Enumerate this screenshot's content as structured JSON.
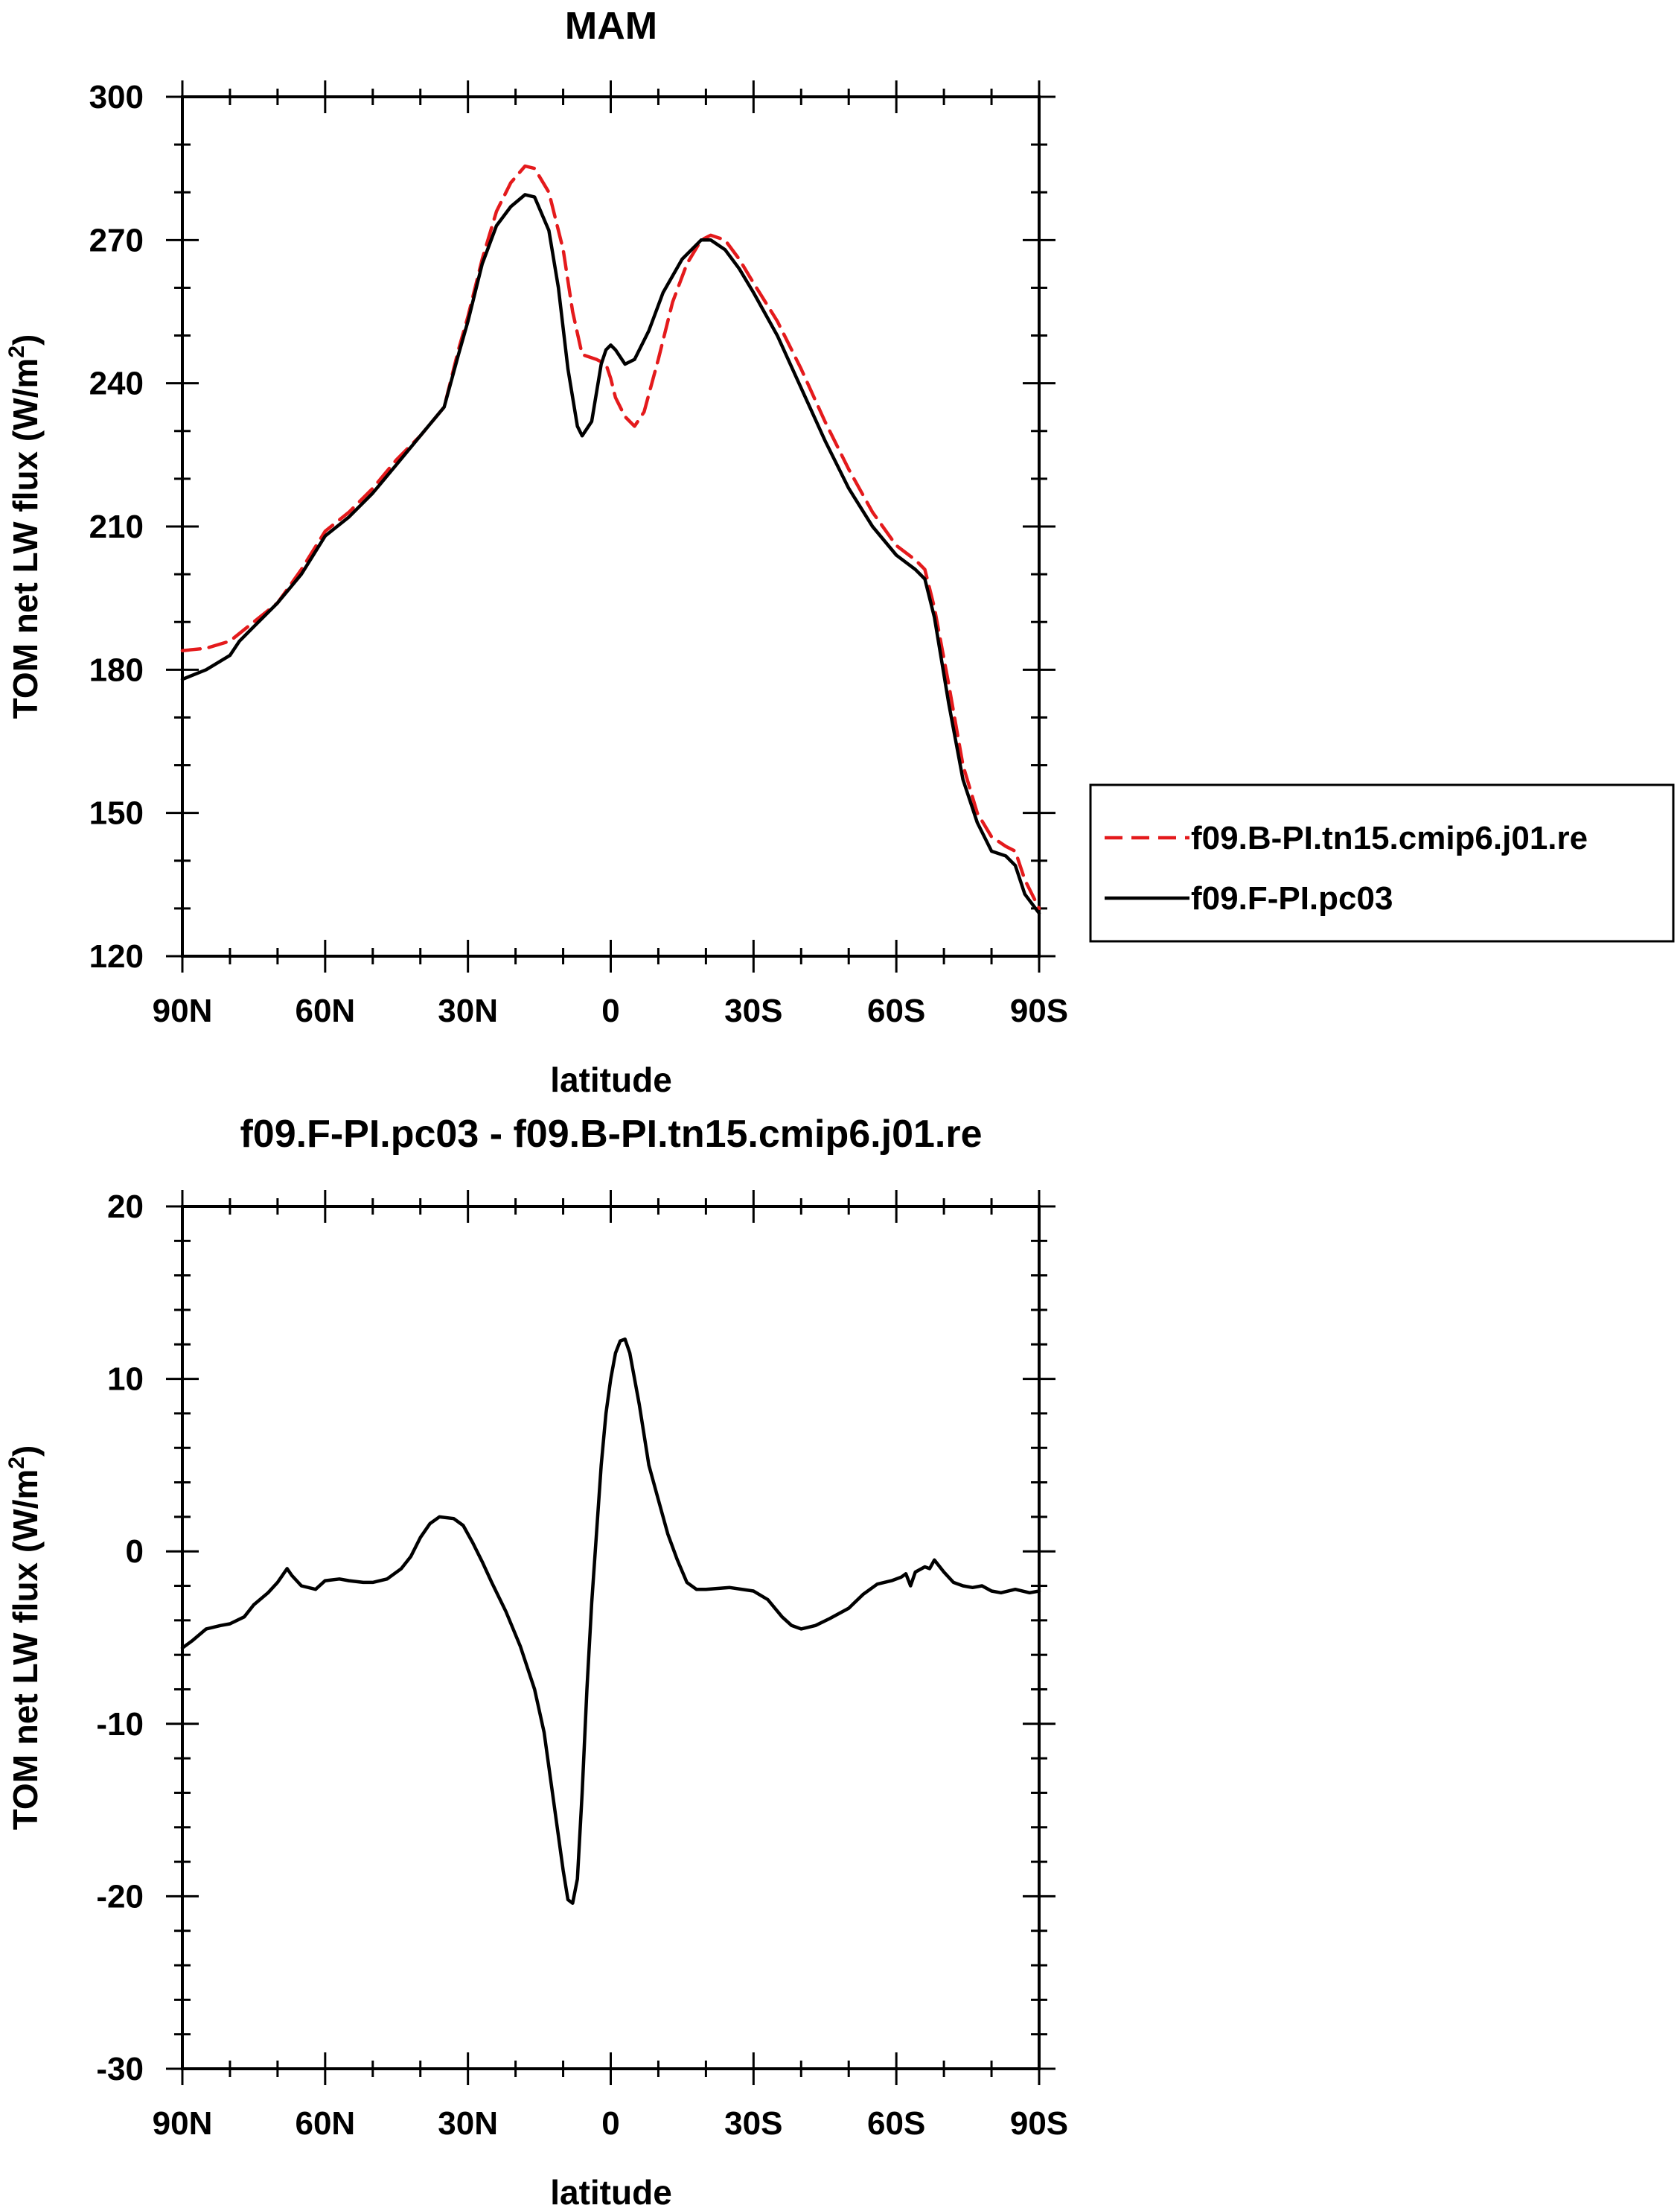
{
  "chart_data": [
    {
      "type": "line",
      "title": "MAM",
      "xlabel": "latitude",
      "ylabel_main": "TOM net LW flux (W/m",
      "ylabel_sup": "2",
      "ylabel_tail": ")",
      "xlim": [
        90,
        -90
      ],
      "ylim": [
        120,
        300
      ],
      "x_ticks": [
        {
          "value": 90,
          "label": "90N"
        },
        {
          "value": 60,
          "label": "60N"
        },
        {
          "value": 30,
          "label": "30N"
        },
        {
          "value": 0,
          "label": "0"
        },
        {
          "value": -30,
          "label": "30S"
        },
        {
          "value": -60,
          "label": "60S"
        },
        {
          "value": -90,
          "label": "90S"
        }
      ],
      "y_ticks": [
        {
          "value": 120,
          "label": "120"
        },
        {
          "value": 150,
          "label": "150"
        },
        {
          "value": 180,
          "label": "180"
        },
        {
          "value": 210,
          "label": "210"
        },
        {
          "value": 240,
          "label": "240"
        },
        {
          "value": 270,
          "label": "270"
        },
        {
          "value": 300,
          "label": "300"
        }
      ],
      "legend_placement": "right, outside plot",
      "series": [
        {
          "name": "f09.B-PI.tn15.cmip6.j01.re",
          "color": "#e41a1c",
          "dash": "dashed",
          "points": [
            [
              90,
              184
            ],
            [
              85,
              184.5
            ],
            [
              80,
              186
            ],
            [
              75,
              190
            ],
            [
              70,
              194
            ],
            [
              65,
              201
            ],
            [
              60,
              209
            ],
            [
              55,
              213
            ],
            [
              50,
              218
            ],
            [
              45,
              224
            ],
            [
              40,
              229
            ],
            [
              35,
              235
            ],
            [
              32,
              247
            ],
            [
              30,
              254
            ],
            [
              27,
              266
            ],
            [
              24,
              276
            ],
            [
              21,
              282
            ],
            [
              18,
              285.5
            ],
            [
              16,
              285
            ],
            [
              13,
              280
            ],
            [
              10,
              268
            ],
            [
              8,
              255
            ],
            [
              6,
              246
            ],
            [
              3,
              245
            ],
            [
              1,
              244
            ],
            [
              0,
              241
            ],
            [
              -1,
              237
            ],
            [
              -3,
              233
            ],
            [
              -5,
              231
            ],
            [
              -7,
              234
            ],
            [
              -10,
              245
            ],
            [
              -13,
              257
            ],
            [
              -16,
              265
            ],
            [
              -19,
              270
            ],
            [
              -21,
              271
            ],
            [
              -24,
              270
            ],
            [
              -27,
              266
            ],
            [
              -30,
              261
            ],
            [
              -35,
              253
            ],
            [
              -40,
              243
            ],
            [
              -45,
              232
            ],
            [
              -50,
              222
            ],
            [
              -55,
              213
            ],
            [
              -60,
              206
            ],
            [
              -64,
              203
            ],
            [
              -66,
              201
            ],
            [
              -68,
              193
            ],
            [
              -71,
              177
            ],
            [
              -74,
              160
            ],
            [
              -77,
              150
            ],
            [
              -80,
              145
            ],
            [
              -83,
              143
            ],
            [
              -85,
              142
            ],
            [
              -87,
              136
            ],
            [
              -90,
              130
            ]
          ]
        },
        {
          "name": "f09.F-PI.pc03",
          "color": "#000000",
          "dash": "solid",
          "points": [
            [
              90,
              178
            ],
            [
              85,
              180
            ],
            [
              80,
              183
            ],
            [
              78,
              186
            ],
            [
              75,
              189
            ],
            [
              70,
              194
            ],
            [
              65,
              200
            ],
            [
              60,
              208
            ],
            [
              55,
              212
            ],
            [
              50,
              217
            ],
            [
              45,
              223
            ],
            [
              40,
              229
            ],
            [
              35,
              235
            ],
            [
              32,
              246
            ],
            [
              30,
              253
            ],
            [
              27,
              265
            ],
            [
              24,
              273
            ],
            [
              21,
              277
            ],
            [
              18,
              279.5
            ],
            [
              16,
              279
            ],
            [
              13,
              272
            ],
            [
              11,
              260
            ],
            [
              9,
              243
            ],
            [
              7,
              231
            ],
            [
              6,
              229
            ],
            [
              4,
              232
            ],
            [
              2,
              244
            ],
            [
              1,
              247
            ],
            [
              0,
              248
            ],
            [
              -1,
              247
            ],
            [
              -3,
              244
            ],
            [
              -5,
              245
            ],
            [
              -8,
              251
            ],
            [
              -11,
              259
            ],
            [
              -15,
              266
            ],
            [
              -19,
              270
            ],
            [
              -21,
              270
            ],
            [
              -24,
              268
            ],
            [
              -27,
              264
            ],
            [
              -30,
              259
            ],
            [
              -35,
              250
            ],
            [
              -40,
              239
            ],
            [
              -45,
              228
            ],
            [
              -50,
              218
            ],
            [
              -55,
              210
            ],
            [
              -60,
              204
            ],
            [
              -64,
              201
            ],
            [
              -66,
              199
            ],
            [
              -68,
              191
            ],
            [
              -71,
              173
            ],
            [
              -74,
              157
            ],
            [
              -77,
              148
            ],
            [
              -80,
              142
            ],
            [
              -83,
              141
            ],
            [
              -85,
              139
            ],
            [
              -87,
              133
            ],
            [
              -90,
              129
            ]
          ]
        }
      ]
    },
    {
      "type": "line",
      "title": "f09.F-PI.pc03 - f09.B-PI.tn15.cmip6.j01.re",
      "xlabel": "latitude",
      "ylabel_main": "TOM net LW flux (W/m",
      "ylabel_sup": "2",
      "ylabel_tail": ")",
      "xlim": [
        90,
        -90
      ],
      "ylim": [
        -30,
        20
      ],
      "x_ticks": [
        {
          "value": 90,
          "label": "90N"
        },
        {
          "value": 60,
          "label": "60N"
        },
        {
          "value": 30,
          "label": "30N"
        },
        {
          "value": 0,
          "label": "0"
        },
        {
          "value": -30,
          "label": "30S"
        },
        {
          "value": -60,
          "label": "60S"
        },
        {
          "value": -90,
          "label": "90S"
        }
      ],
      "y_ticks": [
        {
          "value": -30,
          "label": "-30"
        },
        {
          "value": -20,
          "label": "-20"
        },
        {
          "value": -10,
          "label": "-10"
        },
        {
          "value": 0,
          "label": "0"
        },
        {
          "value": 10,
          "label": "10"
        },
        {
          "value": 20,
          "label": "20"
        }
      ],
      "series": [
        {
          "color": "#000000",
          "dash": "solid",
          "points": [
            [
              90,
              -5.6
            ],
            [
              88,
              -5.2
            ],
            [
              85,
              -4.5
            ],
            [
              82,
              -4.3
            ],
            [
              80,
              -4.2
            ],
            [
              77,
              -3.8
            ],
            [
              75,
              -3.1
            ],
            [
              72,
              -2.4
            ],
            [
              70,
              -1.8
            ],
            [
              68,
              -1.0
            ],
            [
              67,
              -1.4
            ],
            [
              65,
              -2.0
            ],
            [
              62,
              -2.2
            ],
            [
              60,
              -1.7
            ],
            [
              57,
              -1.6
            ],
            [
              55,
              -1.7
            ],
            [
              52,
              -1.8
            ],
            [
              50,
              -1.8
            ],
            [
              47,
              -1.6
            ],
            [
              44,
              -1.0
            ],
            [
              42,
              -0.3
            ],
            [
              40,
              0.8
            ],
            [
              38,
              1.6
            ],
            [
              36,
              2.0
            ],
            [
              33,
              1.9
            ],
            [
              31,
              1.5
            ],
            [
              29,
              0.5
            ],
            [
              27,
              -0.6
            ],
            [
              25,
              -1.8
            ],
            [
              22,
              -3.5
            ],
            [
              19,
              -5.5
            ],
            [
              16,
              -8.0
            ],
            [
              14,
              -10.5
            ],
            [
              12,
              -14.5
            ],
            [
              10,
              -18.5
            ],
            [
              9,
              -20.2
            ],
            [
              8,
              -20.4
            ],
            [
              7,
              -19.0
            ],
            [
              6,
              -14.0
            ],
            [
              5,
              -8.0
            ],
            [
              4,
              -3.0
            ],
            [
              3,
              1.0
            ],
            [
              2,
              5.0
            ],
            [
              1,
              8.0
            ],
            [
              0,
              10.0
            ],
            [
              -1,
              11.5
            ],
            [
              -2,
              12.2
            ],
            [
              -3,
              12.3
            ],
            [
              -4,
              11.5
            ],
            [
              -6,
              8.5
            ],
            [
              -8,
              5.0
            ],
            [
              -10,
              3.0
            ],
            [
              -12,
              1.0
            ],
            [
              -14,
              -0.5
            ],
            [
              -16,
              -1.8
            ],
            [
              -18,
              -2.2
            ],
            [
              -20,
              -2.2
            ],
            [
              -25,
              -2.1
            ],
            [
              -30,
              -2.3
            ],
            [
              -33,
              -2.8
            ],
            [
              -36,
              -3.8
            ],
            [
              -38,
              -4.3
            ],
            [
              -40,
              -4.5
            ],
            [
              -43,
              -4.3
            ],
            [
              -46,
              -3.9
            ],
            [
              -50,
              -3.3
            ],
            [
              -53,
              -2.5
            ],
            [
              -56,
              -1.9
            ],
            [
              -59,
              -1.7
            ],
            [
              -61,
              -1.5
            ],
            [
              -62,
              -1.3
            ],
            [
              -63,
              -2.0
            ],
            [
              -64,
              -1.2
            ],
            [
              -66,
              -0.9
            ],
            [
              -67,
              -1.0
            ],
            [
              -68,
              -0.5
            ],
            [
              -70,
              -1.2
            ],
            [
              -72,
              -1.8
            ],
            [
              -74,
              -2.0
            ],
            [
              -76,
              -2.1
            ],
            [
              -78,
              -2.0
            ],
            [
              -80,
              -2.3
            ],
            [
              -82,
              -2.4
            ],
            [
              -85,
              -2.2
            ],
            [
              -88,
              -2.4
            ],
            [
              -90,
              -2.3
            ]
          ]
        }
      ]
    }
  ]
}
